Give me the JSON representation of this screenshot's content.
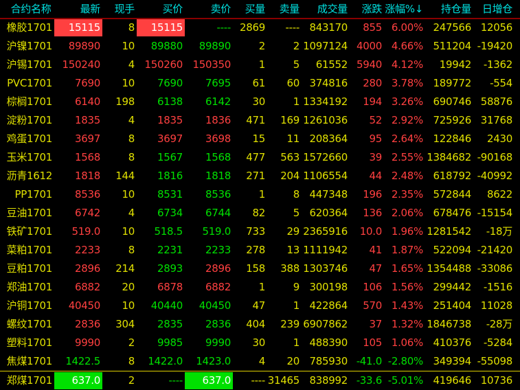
{
  "colors": {
    "up": "#ff4040",
    "down": "#00e000",
    "neutral": "#e0e000",
    "header": "#00e0e0",
    "header_line": "#8a0000"
  },
  "headers": [
    "合约名称",
    "最新",
    "现手",
    "买价",
    "卖价",
    "买量",
    "卖量",
    "成交量",
    "涨跌",
    "涨幅%↓",
    "持仓量",
    "日增仓"
  ],
  "sort_indicator": "涨幅% descending",
  "rows": [
    {
      "cells": [
        "橡胶1701",
        "15115",
        "8",
        "15115",
        "----",
        "2869",
        "----",
        "843170",
        "855",
        "6.00%",
        "247566",
        "12056"
      ],
      "colors": [
        "y",
        "hl-r",
        "y",
        "hl-r",
        "g",
        "y",
        "y",
        "y",
        "r",
        "r",
        "y",
        "y"
      ]
    },
    {
      "cells": [
        "沪镍1701",
        "89890",
        "10",
        "89880",
        "89890",
        "2",
        "2",
        "1097124",
        "4000",
        "4.66%",
        "511204",
        "-19420"
      ],
      "colors": [
        "y",
        "r",
        "y",
        "g",
        "g",
        "y",
        "y",
        "y",
        "r",
        "r",
        "y",
        "y"
      ]
    },
    {
      "cells": [
        "沪锡1701",
        "150240",
        "4",
        "150260",
        "150350",
        "1",
        "5",
        "61552",
        "5940",
        "4.12%",
        "19942",
        "-1362"
      ],
      "colors": [
        "y",
        "r",
        "y",
        "r",
        "r",
        "y",
        "y",
        "y",
        "r",
        "r",
        "y",
        "y"
      ]
    },
    {
      "cells": [
        "PVC1701",
        "7690",
        "10",
        "7690",
        "7695",
        "61",
        "60",
        "374816",
        "280",
        "3.78%",
        "189772",
        "-554"
      ],
      "colors": [
        "y",
        "r",
        "y",
        "g",
        "g",
        "y",
        "y",
        "y",
        "r",
        "r",
        "y",
        "y"
      ]
    },
    {
      "cells": [
        "棕榈1701",
        "6140",
        "198",
        "6138",
        "6142",
        "30",
        "1",
        "1334192",
        "194",
        "3.26%",
        "690746",
        "58876"
      ],
      "colors": [
        "y",
        "r",
        "y",
        "g",
        "g",
        "y",
        "y",
        "y",
        "r",
        "r",
        "y",
        "y"
      ]
    },
    {
      "cells": [
        "淀粉1701",
        "1835",
        "4",
        "1835",
        "1836",
        "471",
        "169",
        "1261036",
        "52",
        "2.92%",
        "725926",
        "31768"
      ],
      "colors": [
        "y",
        "r",
        "y",
        "r",
        "r",
        "y",
        "y",
        "y",
        "r",
        "r",
        "y",
        "y"
      ]
    },
    {
      "cells": [
        "鸡蛋1701",
        "3697",
        "8",
        "3697",
        "3698",
        "15",
        "11",
        "208364",
        "95",
        "2.64%",
        "122846",
        "2430"
      ],
      "colors": [
        "y",
        "r",
        "y",
        "r",
        "r",
        "y",
        "y",
        "y",
        "r",
        "r",
        "y",
        "y"
      ]
    },
    {
      "cells": [
        "玉米1701",
        "1568",
        "8",
        "1567",
        "1568",
        "477",
        "563",
        "1572660",
        "39",
        "2.55%",
        "1384682",
        "-90168"
      ],
      "colors": [
        "y",
        "r",
        "y",
        "g",
        "g",
        "y",
        "y",
        "y",
        "r",
        "r",
        "y",
        "y"
      ]
    },
    {
      "cells": [
        "沥青1612",
        "1818",
        "144",
        "1816",
        "1818",
        "271",
        "204",
        "1106554",
        "44",
        "2.48%",
        "618792",
        "-40992"
      ],
      "colors": [
        "y",
        "r",
        "y",
        "g",
        "g",
        "y",
        "y",
        "y",
        "r",
        "r",
        "y",
        "y"
      ]
    },
    {
      "cells": [
        "PP1701",
        "8536",
        "10",
        "8531",
        "8536",
        "1",
        "8",
        "447348",
        "196",
        "2.35%",
        "572844",
        "8622"
      ],
      "colors": [
        "y",
        "r",
        "y",
        "g",
        "g",
        "y",
        "y",
        "y",
        "r",
        "r",
        "y",
        "y"
      ]
    },
    {
      "cells": [
        "豆油1701",
        "6742",
        "4",
        "6734",
        "6744",
        "82",
        "5",
        "620364",
        "136",
        "2.06%",
        "678476",
        "-15154"
      ],
      "colors": [
        "y",
        "r",
        "y",
        "g",
        "g",
        "y",
        "y",
        "y",
        "r",
        "r",
        "y",
        "y"
      ]
    },
    {
      "cells": [
        "铁矿1701",
        "519.0",
        "10",
        "518.5",
        "519.0",
        "733",
        "29",
        "2365916",
        "10.0",
        "1.96%",
        "1281542",
        "-18万"
      ],
      "colors": [
        "y",
        "r",
        "y",
        "g",
        "g",
        "y",
        "y",
        "y",
        "r",
        "r",
        "y",
        "y"
      ]
    },
    {
      "cells": [
        "菜粕1701",
        "2233",
        "8",
        "2231",
        "2233",
        "278",
        "13",
        "1111942",
        "41",
        "1.87%",
        "522094",
        "-21420"
      ],
      "colors": [
        "y",
        "r",
        "y",
        "g",
        "g",
        "y",
        "y",
        "y",
        "r",
        "r",
        "y",
        "y"
      ]
    },
    {
      "cells": [
        "豆粕1701",
        "2896",
        "214",
        "2893",
        "2896",
        "158",
        "388",
        "1303746",
        "47",
        "1.65%",
        "1354488",
        "-33086"
      ],
      "colors": [
        "y",
        "r",
        "y",
        "g",
        "r",
        "y",
        "y",
        "y",
        "r",
        "r",
        "y",
        "y"
      ]
    },
    {
      "cells": [
        "郑油1701",
        "6882",
        "20",
        "6878",
        "6882",
        "1",
        "9",
        "300198",
        "106",
        "1.56%",
        "299442",
        "-1516"
      ],
      "colors": [
        "y",
        "r",
        "y",
        "r",
        "r",
        "y",
        "y",
        "y",
        "r",
        "r",
        "y",
        "y"
      ]
    },
    {
      "cells": [
        "沪铜1701",
        "40450",
        "10",
        "40440",
        "40450",
        "47",
        "1",
        "422864",
        "570",
        "1.43%",
        "251404",
        "11028"
      ],
      "colors": [
        "y",
        "r",
        "y",
        "g",
        "g",
        "y",
        "y",
        "y",
        "r",
        "r",
        "y",
        "y"
      ]
    },
    {
      "cells": [
        "螺纹1701",
        "2836",
        "304",
        "2835",
        "2836",
        "404",
        "239",
        "6907862",
        "37",
        "1.32%",
        "1846738",
        "-28万"
      ],
      "colors": [
        "y",
        "r",
        "y",
        "g",
        "g",
        "y",
        "y",
        "y",
        "r",
        "r",
        "y",
        "y"
      ]
    },
    {
      "cells": [
        "塑料1701",
        "9990",
        "2",
        "9985",
        "9990",
        "30",
        "1",
        "488390",
        "105",
        "1.06%",
        "410376",
        "-5284"
      ],
      "colors": [
        "y",
        "r",
        "y",
        "g",
        "g",
        "y",
        "y",
        "y",
        "r",
        "r",
        "y",
        "y"
      ]
    },
    {
      "cells": [
        "焦煤1701",
        "1422.5",
        "8",
        "1422.0",
        "1423.0",
        "4",
        "20",
        "785930",
        "-41.0",
        "-2.80%",
        "349394",
        "-55098"
      ],
      "colors": [
        "y",
        "g",
        "y",
        "g",
        "g",
        "y",
        "y",
        "y",
        "g",
        "g",
        "y",
        "y"
      ]
    },
    {
      "cells": [
        "郑煤1701",
        "637.0",
        "2",
        "----",
        "637.0",
        "----",
        "31465",
        "838992",
        "-33.6",
        "-5.01%",
        "419646",
        "10736"
      ],
      "colors": [
        "y",
        "hl-g",
        "y",
        "g",
        "hl-g",
        "y",
        "y",
        "y",
        "g",
        "g",
        "y",
        "y"
      ]
    }
  ]
}
